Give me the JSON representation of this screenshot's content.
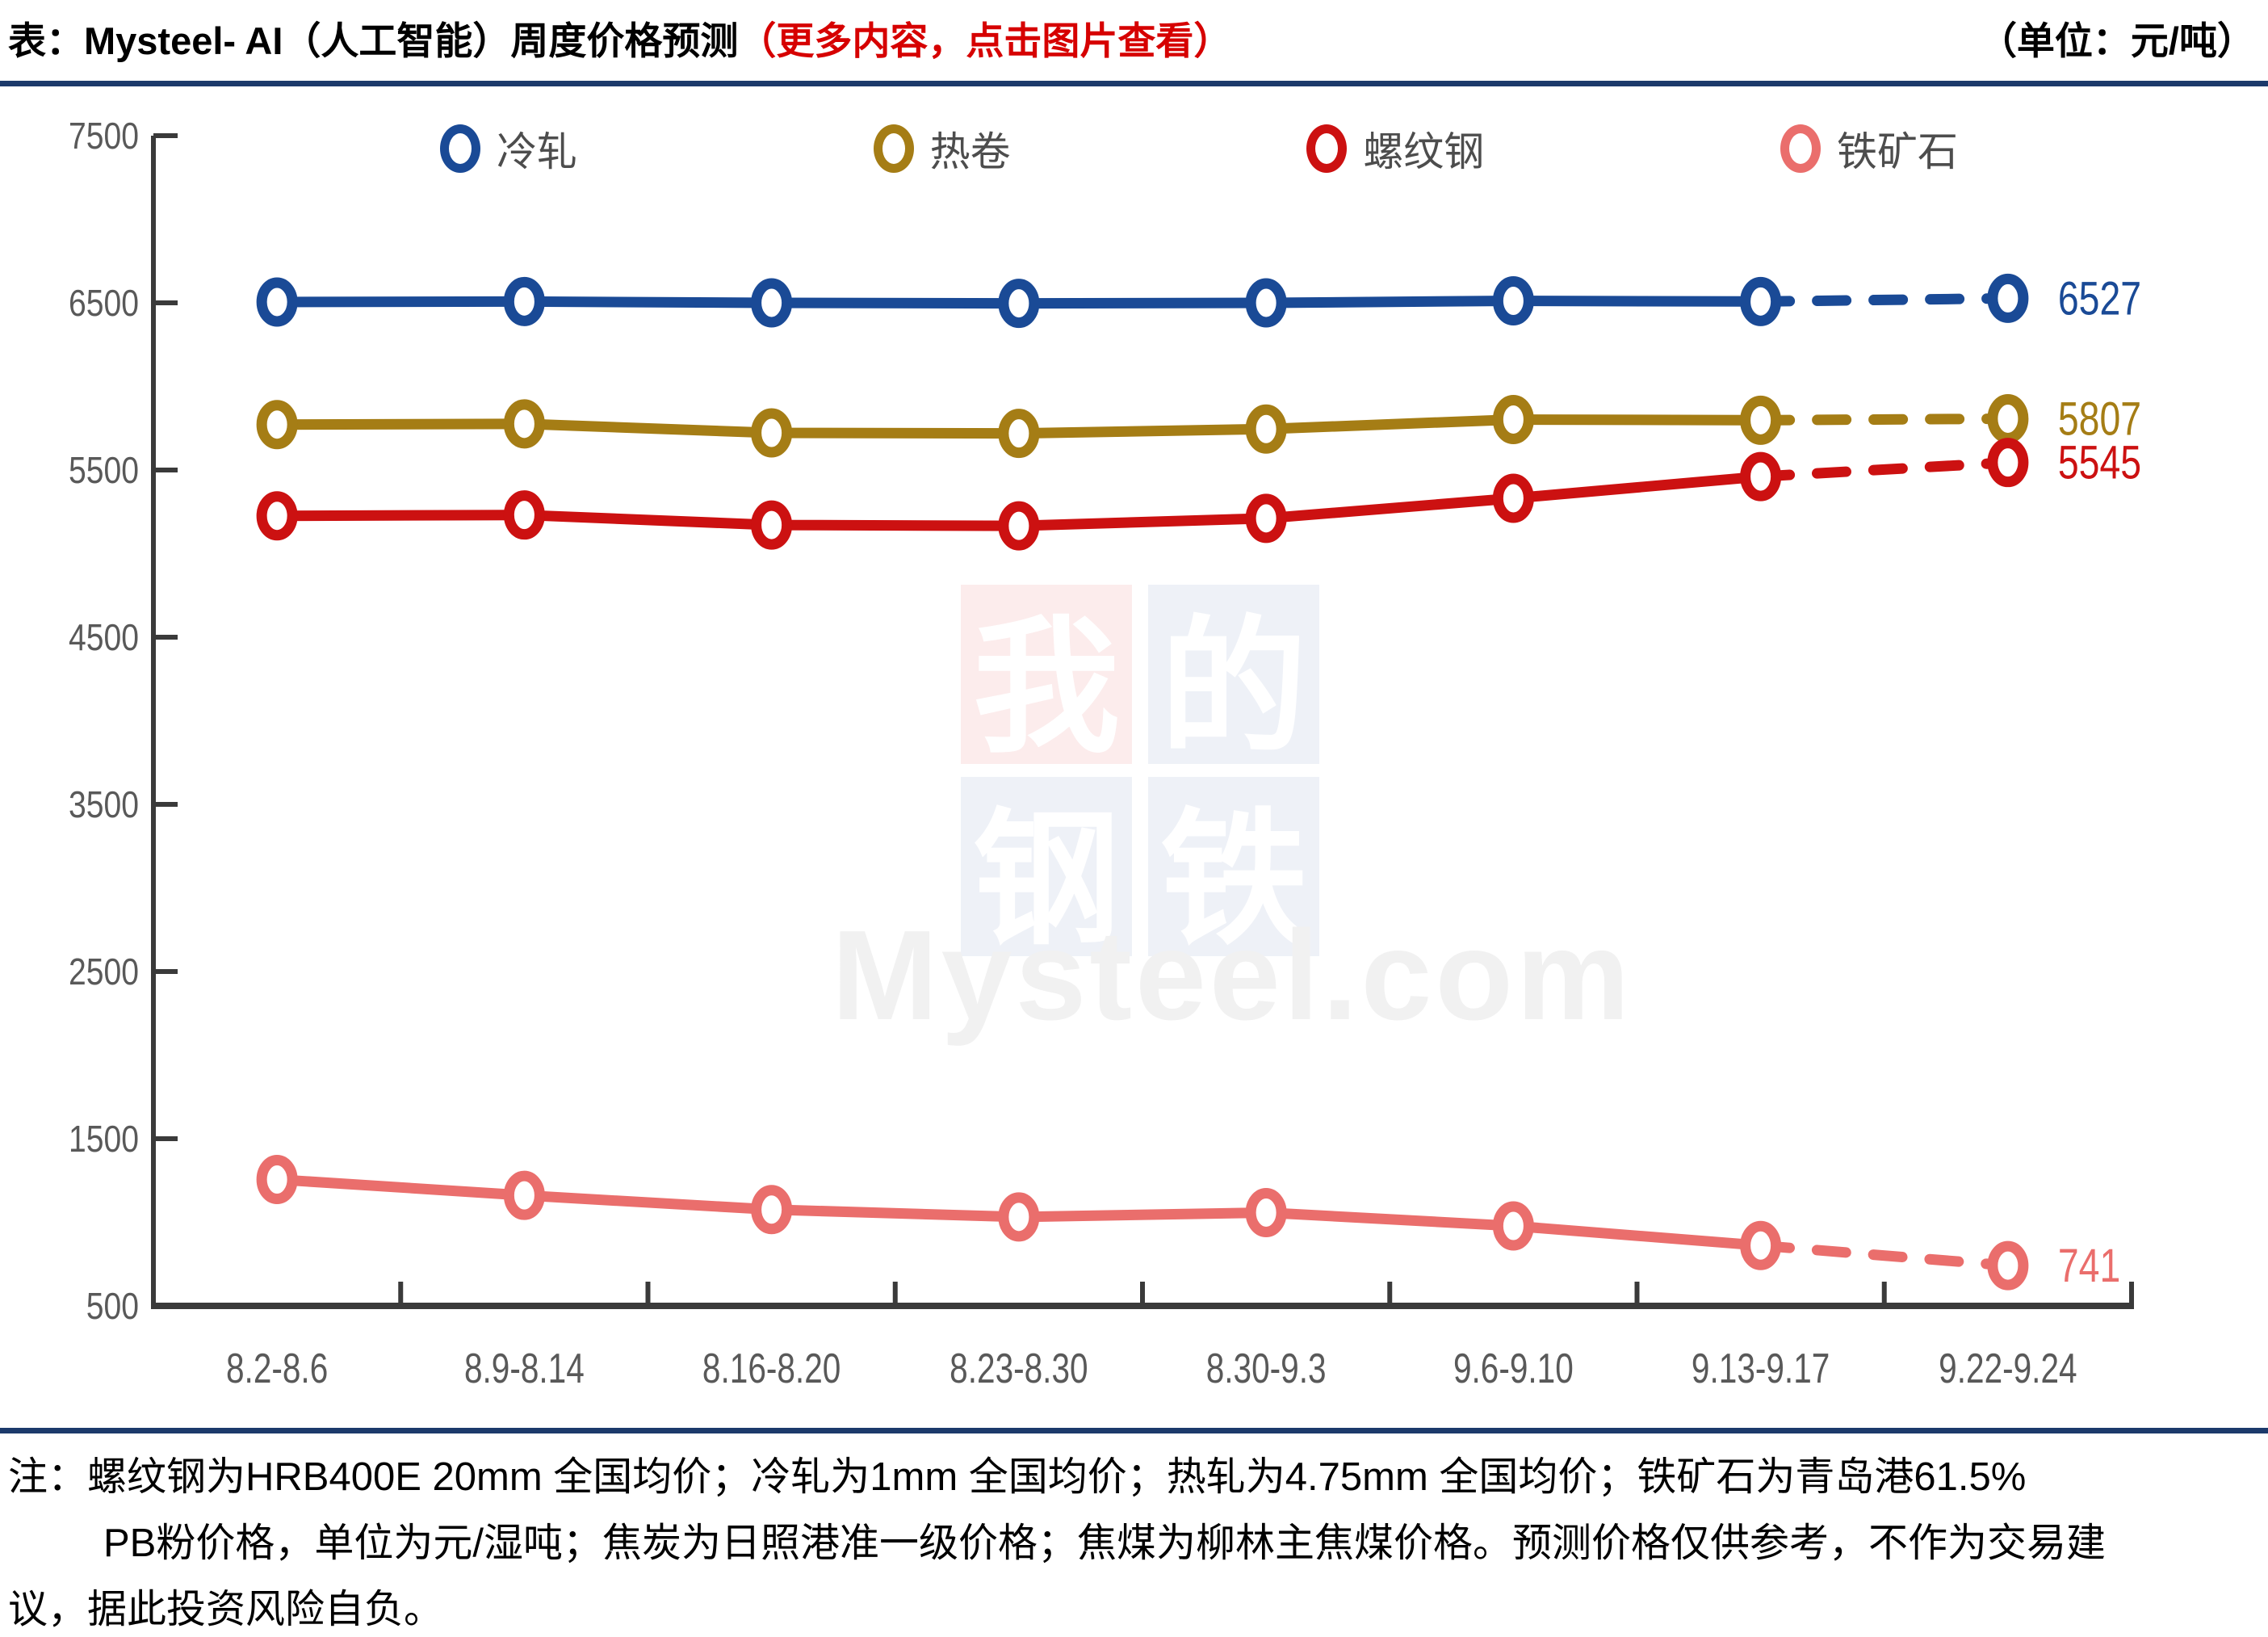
{
  "header": {
    "title_black": "表：Mysteel- AI（人工智能）周度价格预测",
    "title_red": "（更多内容，点击图片查看）",
    "unit": "（单位：元/吨）"
  },
  "legend": [
    {
      "label": "冷轧",
      "color": "#1a4a96"
    },
    {
      "label": "热卷",
      "color": "#a57d15"
    },
    {
      "label": "螺纹钢",
      "color": "#cc1111"
    },
    {
      "label": "铁矿石",
      "color": "#ea6e6c"
    }
  ],
  "chart_data": {
    "type": "line",
    "title": "Mysteel-AI 周度价格预测",
    "unit": "元/吨",
    "categories": [
      "8.2-8.6",
      "8.9-8.14",
      "8.16-8.20",
      "8.23-8.30",
      "8.30-9.3",
      "9.6-9.10",
      "9.13-9.17",
      "9.22-9.24"
    ],
    "series": [
      {
        "name": "冷轧",
        "color": "#1a4a96",
        "values": [
          6505,
          6508,
          6500,
          6497,
          6500,
          6512,
          6508,
          6527
        ],
        "end_label": "6527"
      },
      {
        "name": "热卷",
        "color": "#a57d15",
        "values": [
          5772,
          5776,
          5722,
          5719,
          5745,
          5802,
          5798,
          5807
        ],
        "end_label": "5807"
      },
      {
        "name": "螺纹钢",
        "color": "#cc1111",
        "values": [
          5226,
          5231,
          5171,
          5166,
          5211,
          5331,
          5461,
          5545
        ],
        "end_label": "5545"
      },
      {
        "name": "铁矿石",
        "color": "#ea6e6c",
        "values": [
          1256,
          1161,
          1076,
          1032,
          1058,
          978,
          861,
          741
        ],
        "end_label": "741"
      }
    ],
    "ylim": [
      500,
      7500
    ],
    "yticks": [
      500,
      1500,
      2500,
      3500,
      4500,
      5500,
      6500,
      7500
    ],
    "dashed_last_segment": true,
    "legend_position": "top",
    "grid": false
  },
  "watermark": {
    "squares": [
      "我",
      "的",
      "钢",
      "铁"
    ],
    "text": "Mysteel.com"
  },
  "note": {
    "line1": "注：螺纹钢为HRB400E 20mm 全国均价；冷轧为1mm 全国均价；热轧为4.75mm 全国均价；铁矿石为青岛港61.5%",
    "line2": "PB粉价格，单位为元/湿吨；焦炭为日照港准一级价格；焦煤为柳林主焦煤价格。预测价格仅供参考，不作为交易建",
    "line3": "议，据此投资风险自负。"
  },
  "colors": {
    "title_red": "#d60000",
    "separator": "#1c3a6b",
    "axis": "#3a3a3a",
    "tick_label": "#595959",
    "legend_label": "#4d4d4d",
    "watermark_text": "#f1f1f1"
  }
}
